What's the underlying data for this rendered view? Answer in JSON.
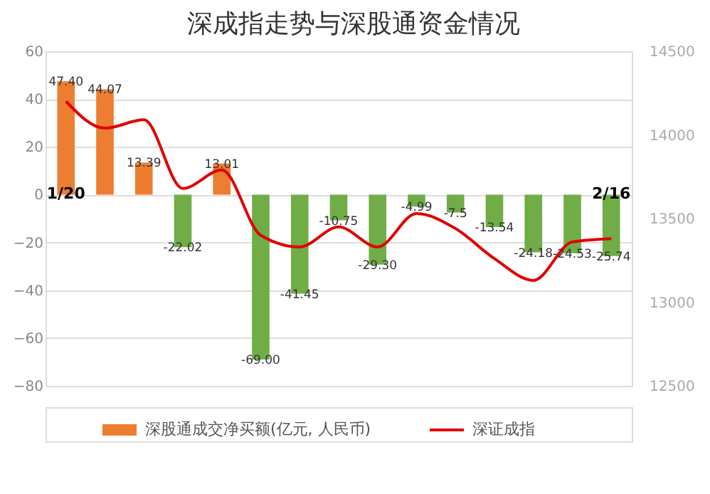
{
  "chart_data": {
    "type": "bar",
    "title": "深成指走势与深股通资金情况",
    "categories": [
      "1/20",
      null,
      null,
      null,
      null,
      null,
      null,
      null,
      null,
      null,
      null,
      null,
      null,
      null,
      "2/16"
    ],
    "series": [
      {
        "name": "深股通成交净买额(亿元, 人民币)",
        "color": "#ed7d31",
        "colors": [
          "#ed7d31",
          "#ed7d31",
          "#ed7d31",
          "#70ad47",
          "#ed7d31",
          "#70ad47",
          "#70ad47",
          "#70ad47",
          "#70ad47",
          "#70ad47",
          "#70ad47",
          "#70ad47",
          "#70ad47",
          "#70ad47",
          "#70ad47"
        ],
        "values": [
          47.4,
          44.07,
          13.39,
          -22.02,
          13.01,
          -69.0,
          -41.45,
          -10.75,
          -29.3,
          -4.99,
          -7.5,
          -13.54,
          -24.18,
          -24.53,
          -25.74
        ],
        "value_labels": [
          "47.40",
          "44.07",
          "13.39",
          "-22.02",
          "13.01",
          "-69.00",
          "-41.45",
          "-10.75",
          "-29.30",
          "-4.99",
          "-7.5",
          "-13.54",
          "-24.18",
          "-24.53",
          "-25.74"
        ]
      },
      {
        "name": "深证成指",
        "type": "line",
        "axis": "y2",
        "color": "#e00000",
        "values": [
          14200,
          14040,
          14090,
          13680,
          13790,
          13400,
          13330,
          13450,
          13330,
          13530,
          13440,
          13260,
          13130,
          13360,
          13380
        ]
      }
    ],
    "ylim": [
      -80,
      60
    ],
    "yticks": [
      -80,
      -60,
      -40,
      -20,
      0,
      20,
      40,
      60
    ],
    "y2lim": [
      12500,
      14500
    ],
    "y2ticks": [
      12500,
      13000,
      13500,
      14000,
      14500
    ],
    "grid": "y",
    "legend": "bottom",
    "line_style": "solid",
    "marker": "none"
  }
}
